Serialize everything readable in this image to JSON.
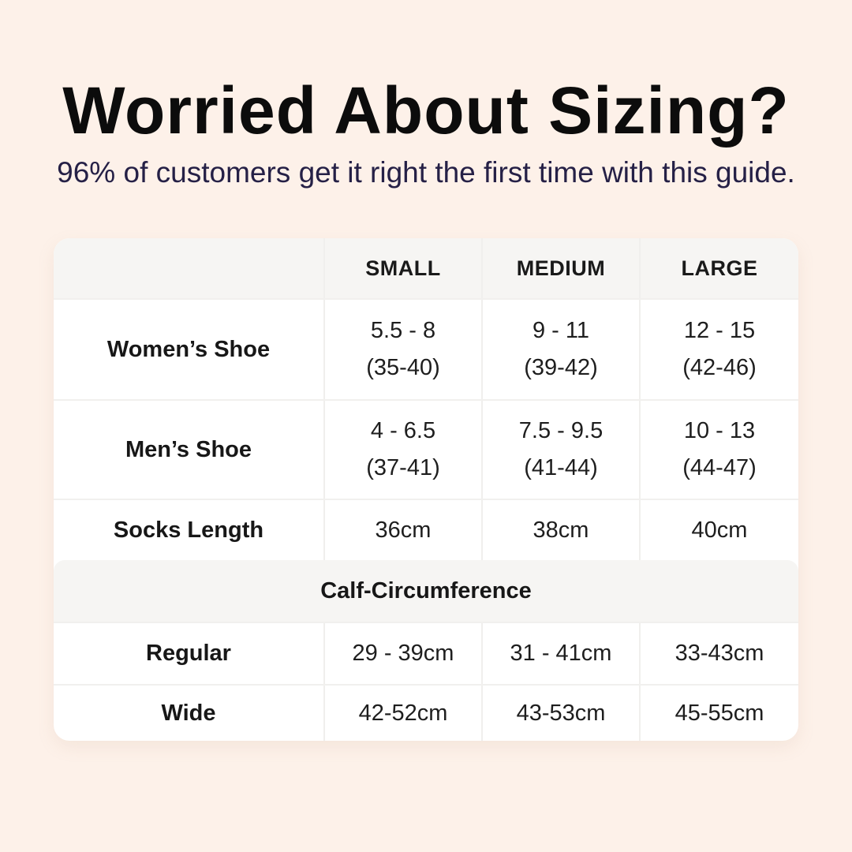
{
  "page": {
    "title": "Worried About Sizing?",
    "subtitle": "96% of customers get it right the first time with this guide."
  },
  "colors": {
    "background": "#fdf1e9",
    "card": "#ffffff",
    "header_band": "#f6f5f3",
    "divider": "#f0efed",
    "title_text": "#0c0c0c",
    "subtitle_text": "#252046",
    "table_text": "#1e1e1e"
  },
  "table": {
    "columns": [
      "",
      "SMALL",
      "MEDIUM",
      "LARGE"
    ],
    "rows": [
      {
        "label": "Women’s Shoe",
        "small_line1": "5.5 - 8",
        "small_line2": "(35-40)",
        "medium_line1": "9 - 11",
        "medium_line2": "(39-42)",
        "large_line1": "12 - 15",
        "large_line2": "(42-46)"
      },
      {
        "label": "Men’s Shoe",
        "small_line1": "4 - 6.5",
        "small_line2": "(37-41)",
        "medium_line1": "7.5 - 9.5",
        "medium_line2": "(41-44)",
        "large_line1": "10 - 13",
        "large_line2": "(44-47)"
      },
      {
        "label": "Socks Length",
        "small": "36cm",
        "medium": "38cm",
        "large": "40cm"
      }
    ],
    "section_header": "Calf-Circumference",
    "calf_rows": [
      {
        "label": "Regular",
        "small": "29 - 39cm",
        "medium": "31 - 41cm",
        "large": "33-43cm"
      },
      {
        "label": "Wide",
        "small": "42-52cm",
        "medium": "43-53cm",
        "large": "45-55cm"
      }
    ]
  },
  "chart_data": {
    "type": "table",
    "title": "Worried About Sizing?",
    "subtitle": "96% of customers get it right the first time with this guide.",
    "columns": [
      "",
      "SMALL",
      "MEDIUM",
      "LARGE"
    ],
    "rows": [
      [
        "Women’s Shoe",
        "5.5 - 8 (35-40)",
        "9 - 11 (39-42)",
        "12 - 15 (42-46)"
      ],
      [
        "Men’s Shoe",
        "4 - 6.5 (37-41)",
        "7.5 - 9.5 (41-44)",
        "10 - 13 (44-47)"
      ],
      [
        "Socks Length",
        "36cm",
        "38cm",
        "40cm"
      ],
      [
        "Calf-Circumference",
        "",
        "",
        ""
      ],
      [
        "Regular",
        "29 - 39cm",
        "31 - 41cm",
        "33-43cm"
      ],
      [
        "Wide",
        "42-52cm",
        "43-53cm",
        "45-55cm"
      ]
    ]
  }
}
